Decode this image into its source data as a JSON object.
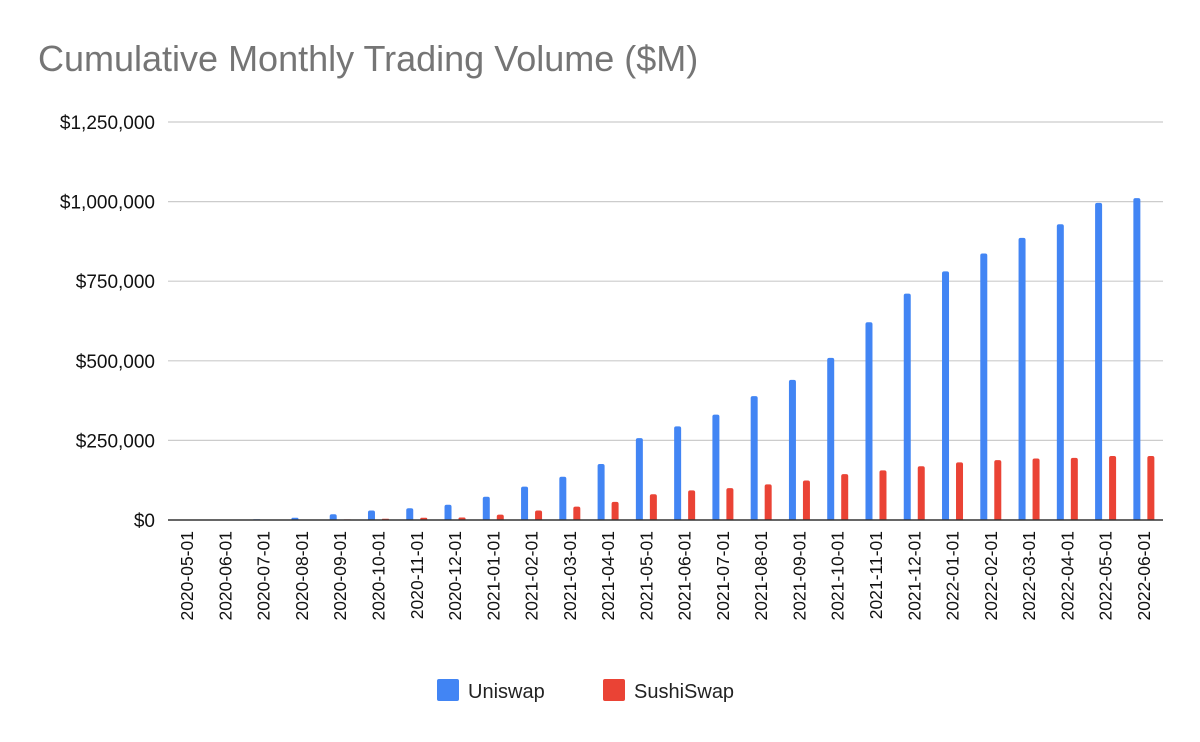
{
  "chart_data": {
    "type": "bar",
    "title": "Cumulative Monthly Trading Volume ($M)",
    "xlabel": "",
    "ylabel": "",
    "ylim": [
      0,
      1250000
    ],
    "yticks": [
      0,
      250000,
      500000,
      750000,
      1000000,
      1250000
    ],
    "ytick_labels": [
      "$0",
      "$250,000",
      "$500,000",
      "$750,000",
      "$1,000,000",
      "$1,250,000"
    ],
    "grid": true,
    "legend_position": "bottom",
    "categories": [
      "2020-05-01",
      "2020-06-01",
      "2020-07-01",
      "2020-08-01",
      "2020-09-01",
      "2020-10-01",
      "2020-11-01",
      "2020-12-01",
      "2021-01-01",
      "2021-02-01",
      "2021-03-01",
      "2021-04-01",
      "2021-05-01",
      "2021-06-01",
      "2021-07-01",
      "2021-08-01",
      "2021-09-01",
      "2021-10-01",
      "2021-11-01",
      "2021-12-01",
      "2022-01-01",
      "2022-02-01",
      "2022-03-01",
      "2022-04-01",
      "2022-05-01",
      "2022-06-01"
    ],
    "series": [
      {
        "name": "Uniswap",
        "color": "#4285f4",
        "values": [
          300,
          1000,
          2500,
          7000,
          18000,
          30000,
          37000,
          48000,
          73000,
          105000,
          136000,
          176000,
          257000,
          294000,
          331000,
          389000,
          440000,
          509000,
          621000,
          711000,
          781000,
          837000,
          886000,
          929000,
          996000,
          1011000
        ]
      },
      {
        "name": "SushiSwap",
        "color": "#ea4335",
        "values": [
          0,
          0,
          0,
          0,
          2000,
          4000,
          7000,
          8000,
          17000,
          30000,
          42000,
          57000,
          81000,
          93000,
          100000,
          112000,
          124000,
          144000,
          156000,
          169000,
          181000,
          188000,
          193000,
          195000,
          201000,
          201000
        ]
      }
    ]
  }
}
